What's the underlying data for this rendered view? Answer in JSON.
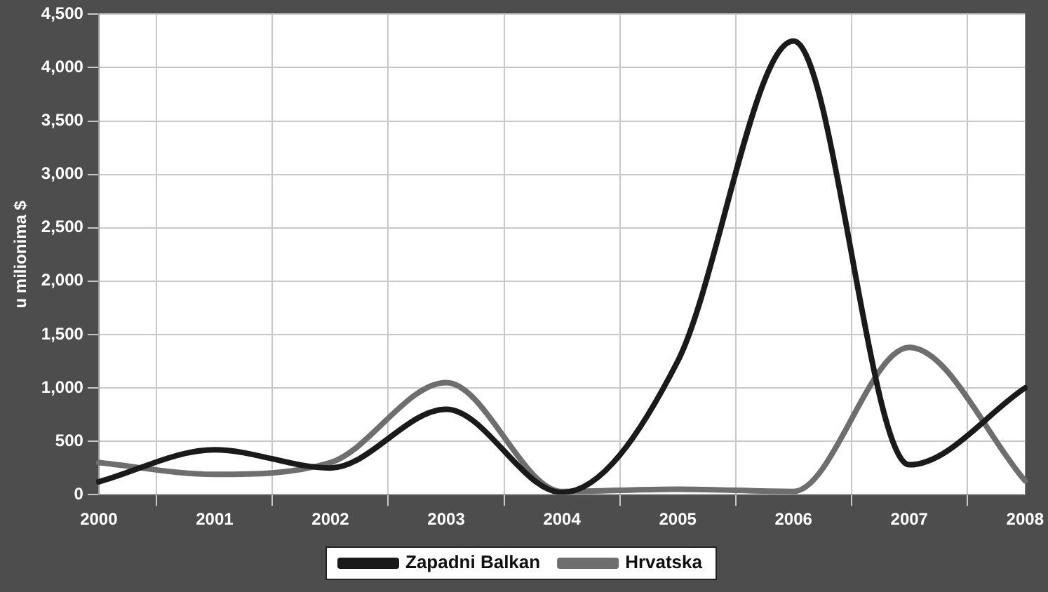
{
  "chart_data": {
    "type": "line",
    "ylabel": "u milionima $",
    "categories": [
      "2000",
      "2001",
      "2002",
      "2003",
      "2004",
      "2005",
      "2006",
      "2007",
      "2008"
    ],
    "series": [
      {
        "name": "Zapadni Balkan",
        "color": "#1a1a1a",
        "values": [
          120,
          420,
          250,
          800,
          20,
          1250,
          4250,
          280,
          1000
        ]
      },
      {
        "name": "Hrvatska",
        "color": "#6e6e6e",
        "values": [
          300,
          190,
          300,
          1050,
          30,
          50,
          30,
          1380,
          130
        ]
      }
    ],
    "ylim": [
      0,
      4500
    ],
    "yticks": [
      {
        "value": 0,
        "label": "0"
      },
      {
        "value": 500,
        "label": "500"
      },
      {
        "value": 1000,
        "label": "1,000"
      },
      {
        "value": 1500,
        "label": "1,500"
      },
      {
        "value": 2000,
        "label": "2,000"
      },
      {
        "value": 2500,
        "label": "2,500"
      },
      {
        "value": 3000,
        "label": "3,000"
      },
      {
        "value": 3500,
        "label": "3,500"
      },
      {
        "value": 4000,
        "label": "4,000"
      },
      {
        "value": 4500,
        "label": "4,500"
      }
    ],
    "grid": true,
    "legend": "bottom",
    "marker": "none",
    "line_style": "solid"
  }
}
